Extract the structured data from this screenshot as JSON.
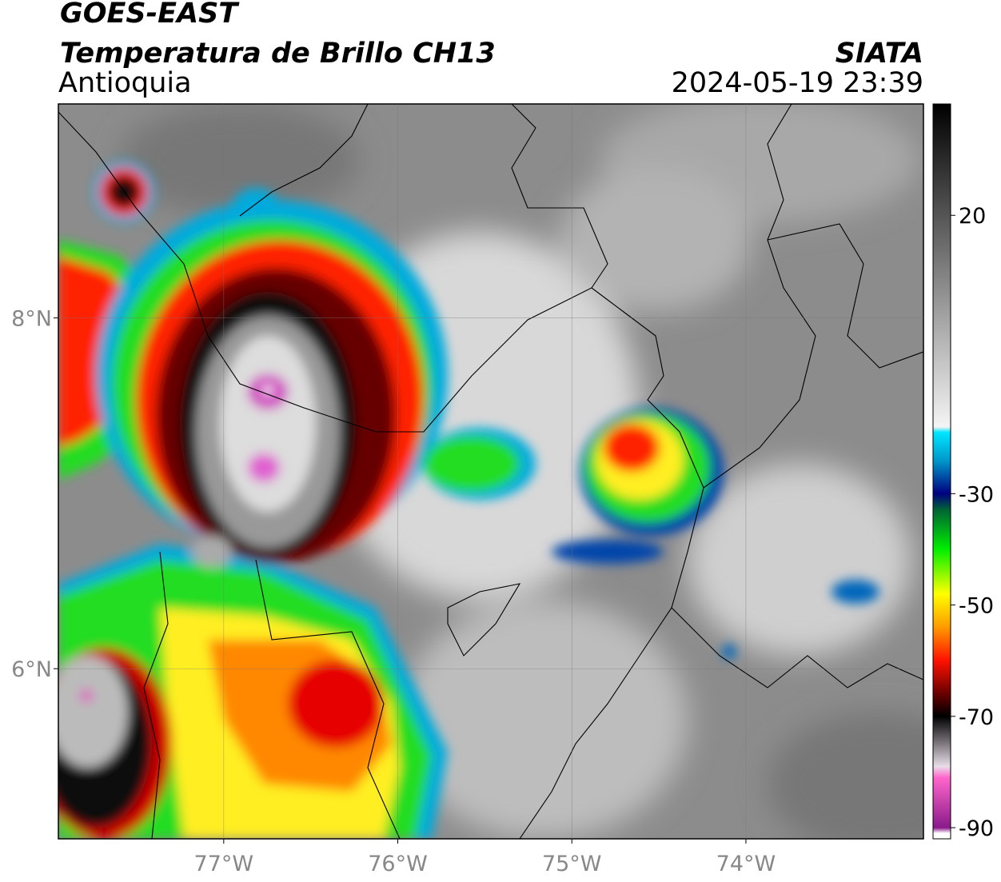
{
  "header": {
    "title": "GOES-EAST",
    "subtitle": "Temperatura de Brillo CH13",
    "region": "Antioquia",
    "source": "SIATA",
    "datetime": "2024-05-19 23:39"
  },
  "map": {
    "lonlim": [
      -77.95,
      -72.98
    ],
    "latlim": [
      5.03,
      9.22
    ],
    "lon_ticks": [
      {
        "value": -77,
        "label": "77°W"
      },
      {
        "value": -76,
        "label": "76°W"
      },
      {
        "value": -75,
        "label": "75°W"
      },
      {
        "value": -74,
        "label": "74°W"
      }
    ],
    "lat_ticks": [
      {
        "value": 8,
        "label": "8°N"
      },
      {
        "value": 6,
        "label": "6°N"
      }
    ]
  },
  "colorbar": {
    "lim": [
      40,
      -92
    ],
    "ticks": [
      20,
      -30,
      -50,
      -70,
      -90
    ],
    "stops": [
      {
        "value": 40,
        "color": "#000000"
      },
      {
        "value": 20,
        "color": "#555555"
      },
      {
        "value": 0,
        "color": "#aaaaaa"
      },
      {
        "value": -18,
        "color": "#f4f4f4"
      },
      {
        "value": -19,
        "color": "#00e5ff"
      },
      {
        "value": -24,
        "color": "#0099cc"
      },
      {
        "value": -30,
        "color": "#00007f"
      },
      {
        "value": -33,
        "color": "#006633"
      },
      {
        "value": -40,
        "color": "#00ee00"
      },
      {
        "value": -48,
        "color": "#ffff00"
      },
      {
        "value": -54,
        "color": "#ff9900"
      },
      {
        "value": -60,
        "color": "#ff1100"
      },
      {
        "value": -66,
        "color": "#660000"
      },
      {
        "value": -70,
        "color": "#000000"
      },
      {
        "value": -79,
        "color": "#e8dde8"
      },
      {
        "value": -81,
        "color": "#ff66cc"
      },
      {
        "value": -90,
        "color": "#8a1a8a"
      },
      {
        "value": -91,
        "color": "#ffffff"
      }
    ]
  }
}
